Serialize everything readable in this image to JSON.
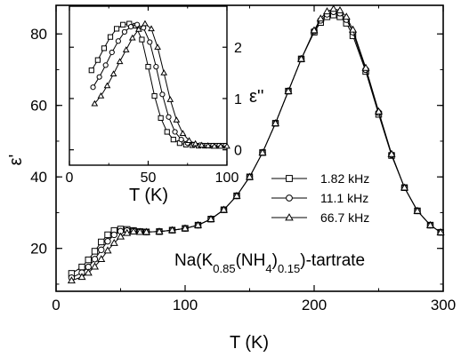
{
  "chart_data": [
    {
      "type": "scatter",
      "xlabel": "T (K)",
      "ylabel": "ε'",
      "xlim": [
        0,
        300
      ],
      "ylim": [
        8,
        88
      ],
      "xticks": [
        0,
        100,
        200,
        300
      ],
      "yticks": [
        20,
        40,
        60,
        80
      ],
      "grid": false,
      "legend_position": "middle-right",
      "annotation": {
        "main": "Na(K",
        "sub1": "0.85",
        "mid": "(NH",
        "sub2": "4",
        "close": ")",
        "sub3": "0.15",
        "tail": ")-tartrate"
      },
      "series": [
        {
          "name": "1.82 kHz",
          "marker": "square",
          "x": [
            12,
            20,
            25,
            30,
            35,
            40,
            45,
            50,
            55,
            60,
            65,
            70,
            80,
            90,
            100,
            110,
            120,
            130,
            140,
            150,
            160,
            170,
            180,
            190,
            200,
            205,
            210,
            215,
            220,
            225,
            230,
            240,
            250,
            260,
            270,
            280,
            290,
            298
          ],
          "y": [
            13.0,
            14.8,
            16.8,
            19.2,
            21.8,
            23.8,
            25.0,
            25.4,
            25.3,
            25.0,
            24.7,
            24.6,
            24.7,
            25.1,
            25.6,
            26.5,
            28.2,
            30.8,
            34.7,
            40.0,
            46.8,
            55.0,
            64.0,
            73.0,
            80.5,
            83.2,
            84.8,
            85.3,
            84.8,
            83.0,
            79.5,
            69.5,
            57.5,
            46.0,
            37.0,
            30.5,
            26.5,
            24.5
          ]
        },
        {
          "name": "11.1 kHz",
          "marker": "circle",
          "x": [
            12,
            20,
            25,
            30,
            35,
            40,
            45,
            50,
            55,
            60,
            65,
            70,
            80,
            90,
            100,
            110,
            120,
            130,
            140,
            150,
            160,
            170,
            180,
            190,
            200,
            205,
            210,
            215,
            220,
            225,
            230,
            240,
            250,
            260,
            270,
            280,
            290,
            298
          ],
          "y": [
            11.8,
            13.2,
            14.8,
            17.0,
            19.6,
            22.0,
            23.8,
            24.8,
            25.0,
            24.9,
            24.7,
            24.6,
            24.7,
            25.1,
            25.6,
            26.5,
            28.2,
            30.8,
            34.7,
            40.0,
            46.8,
            55.0,
            64.0,
            73.0,
            80.8,
            83.8,
            85.5,
            86.2,
            85.8,
            84.0,
            80.5,
            70.0,
            58.0,
            46.2,
            37.0,
            30.5,
            26.5,
            24.5
          ]
        },
        {
          "name": "66.7 kHz",
          "marker": "triangle",
          "x": [
            12,
            20,
            25,
            30,
            35,
            40,
            45,
            50,
            55,
            60,
            65,
            70,
            80,
            90,
            100,
            110,
            120,
            130,
            140,
            150,
            160,
            170,
            180,
            190,
            200,
            205,
            210,
            215,
            220,
            225,
            230,
            240,
            250,
            260,
            270,
            280,
            290,
            298
          ],
          "y": [
            11.0,
            12.0,
            13.2,
            14.9,
            17.0,
            19.4,
            21.5,
            23.3,
            24.3,
            24.7,
            24.6,
            24.6,
            24.7,
            25.1,
            25.6,
            26.5,
            28.2,
            30.8,
            34.7,
            40.0,
            46.8,
            55.0,
            64.0,
            73.0,
            81.0,
            84.3,
            86.3,
            87.0,
            86.6,
            84.8,
            81.2,
            70.5,
            58.3,
            46.4,
            37.0,
            30.5,
            26.5,
            24.5
          ]
        }
      ]
    },
    {
      "type": "scatter",
      "xlabel": "T (K)",
      "ylabel": "ε''",
      "xlim": [
        0,
        100
      ],
      "ylim": [
        -0.3,
        2.8
      ],
      "xticks": [
        0,
        50,
        100
      ],
      "yticks": [
        0,
        1,
        2
      ],
      "grid": false,
      "series": [
        {
          "name": "1.82 kHz",
          "marker": "square",
          "x": [
            14,
            18,
            22,
            26,
            30,
            34,
            38,
            42,
            46,
            50,
            54,
            58,
            62,
            66,
            70,
            74,
            78,
            82,
            86,
            90,
            94,
            98
          ],
          "y": [
            1.55,
            1.75,
            1.98,
            2.2,
            2.36,
            2.44,
            2.46,
            2.42,
            2.15,
            1.62,
            1.05,
            0.62,
            0.35,
            0.2,
            0.13,
            0.1,
            0.09,
            0.08,
            0.08,
            0.08,
            0.08,
            0.08
          ]
        },
        {
          "name": "11.1 kHz",
          "marker": "circle",
          "x": [
            15,
            19,
            23,
            27,
            31,
            35,
            39,
            43,
            47,
            51,
            55,
            59,
            63,
            67,
            71,
            75,
            79,
            83,
            87,
            91,
            95,
            99
          ],
          "y": [
            1.22,
            1.42,
            1.65,
            1.9,
            2.12,
            2.3,
            2.4,
            2.44,
            2.38,
            2.1,
            1.62,
            1.08,
            0.64,
            0.35,
            0.2,
            0.13,
            0.1,
            0.09,
            0.08,
            0.08,
            0.08,
            0.08
          ]
        },
        {
          "name": "66.7 kHz",
          "marker": "triangle",
          "x": [
            16,
            20,
            24,
            28,
            32,
            36,
            40,
            44,
            48,
            52,
            56,
            60,
            64,
            68,
            72,
            76,
            80,
            84,
            88,
            92,
            96,
            100
          ],
          "y": [
            0.9,
            1.05,
            1.25,
            1.48,
            1.72,
            1.95,
            2.18,
            2.35,
            2.46,
            2.36,
            2.0,
            1.5,
            0.98,
            0.58,
            0.32,
            0.18,
            0.12,
            0.09,
            0.08,
            0.07,
            0.07,
            0.07
          ]
        }
      ]
    }
  ]
}
